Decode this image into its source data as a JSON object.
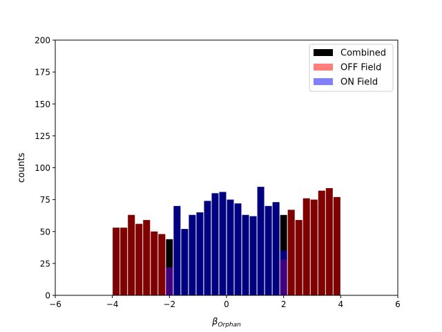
{
  "chart_data": {
    "type": "bar",
    "xlabel_main": "β",
    "xlabel_sub": "Orphan",
    "ylabel": "counts",
    "xlim": [
      -6,
      6
    ],
    "ylim": [
      0,
      200
    ],
    "xticks": [
      -6,
      -4,
      -2,
      0,
      2,
      4,
      6
    ],
    "xtick_labels": [
      "−6",
      "−4",
      "−2",
      "0",
      "2",
      "4",
      "6"
    ],
    "yticks": [
      0,
      25,
      50,
      75,
      100,
      125,
      150,
      175,
      200
    ],
    "ytick_labels": [
      "0",
      "25",
      "50",
      "75",
      "100",
      "125",
      "150",
      "175",
      "200"
    ],
    "bin_edges": [
      -4.0,
      -3.7333,
      -3.4667,
      -3.2,
      -2.9333,
      -2.6667,
      -2.4,
      -2.1333,
      -1.8667,
      -1.6,
      -1.3333,
      -1.0667,
      -0.8,
      -0.5333,
      -0.2667,
      0.0,
      0.2667,
      0.5333,
      0.8,
      1.0667,
      1.3333,
      1.6,
      1.8667,
      2.1333,
      2.4,
      2.6667,
      2.9333,
      3.2,
      3.4667,
      3.7333,
      4.0
    ],
    "legend_position": "top-right",
    "series": [
      {
        "name": "Combined",
        "color": "#000000",
        "alpha": 1.0,
        "values": [
          53,
          53,
          63,
          56,
          59,
          50,
          48,
          44,
          70,
          52,
          63,
          65,
          74,
          80,
          81,
          75,
          72,
          63,
          62,
          85,
          70,
          73,
          63,
          67,
          59,
          76,
          75,
          82,
          84,
          77
        ]
      },
      {
        "name": "OFF Field",
        "color": "#ff0000",
        "alpha": 0.5,
        "values": [
          53,
          53,
          63,
          56,
          59,
          50,
          48,
          22,
          0,
          0,
          0,
          0,
          0,
          0,
          0,
          0,
          0,
          0,
          0,
          0,
          0,
          0,
          28,
          67,
          59,
          76,
          75,
          82,
          84,
          77
        ]
      },
      {
        "name": "ON Field",
        "color": "#0000ff",
        "alpha": 0.5,
        "values": [
          0,
          0,
          0,
          0,
          0,
          0,
          0,
          22,
          70,
          52,
          63,
          65,
          74,
          80,
          81,
          75,
          72,
          63,
          62,
          85,
          70,
          73,
          35,
          0,
          0,
          0,
          0,
          0,
          0,
          0
        ]
      }
    ]
  }
}
